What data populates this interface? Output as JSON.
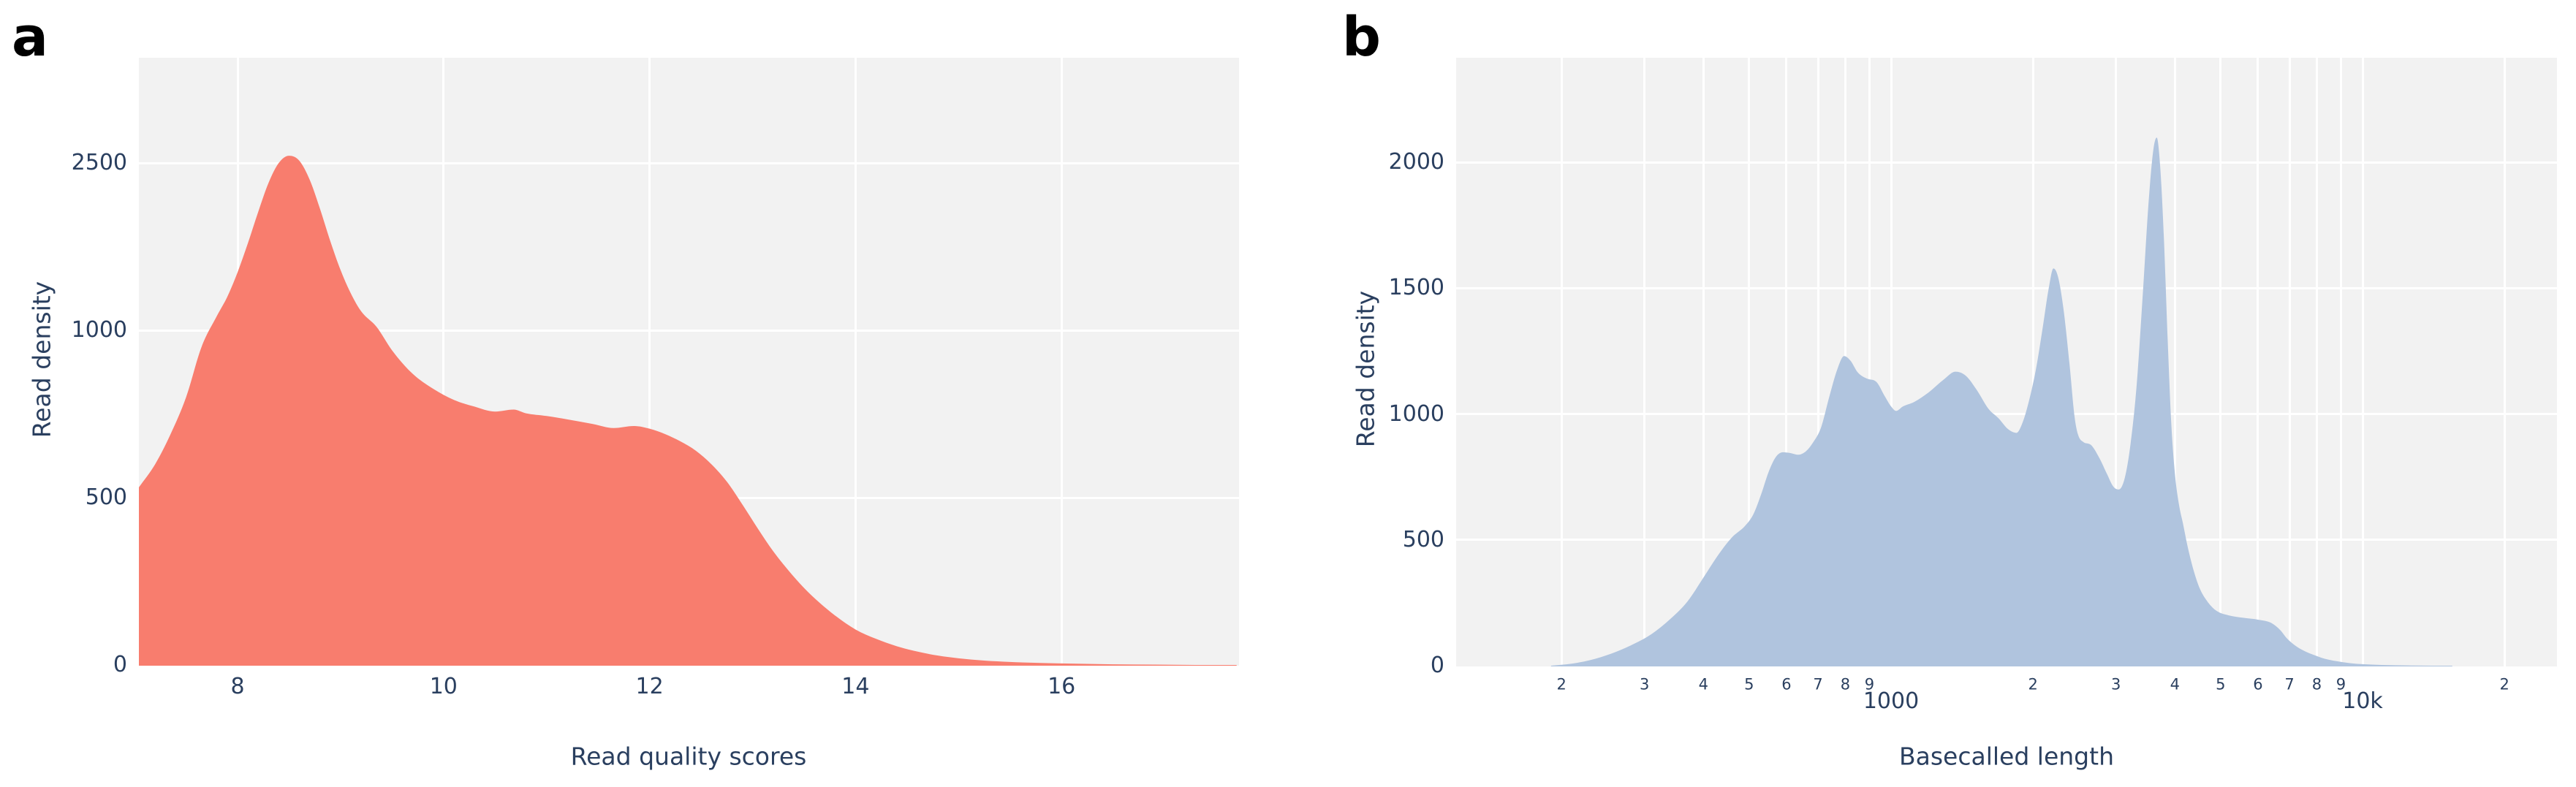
{
  "colors": {
    "panel_background": "#F2F2F2",
    "gridline": "#FFFFFF",
    "tick_text": "#2A3F5F",
    "panel_letter": "#000000",
    "fill_quality": "#F87D6E",
    "fill_length": "#B0C4DE"
  },
  "chart_data": [
    {
      "id": "a",
      "type": "area",
      "panel_label": "a",
      "xlabel": "Read quality scores",
      "ylabel": "Read density",
      "x_scale": "linear",
      "grid": true,
      "legend": "none",
      "fill_color": "#F87D6E",
      "x_range": [
        7.04,
        17.7
      ],
      "y_range_rendered_note": "y tick spacing is visually uniform in source even though values are 0/500/1000/2500",
      "x_ticks": [
        {
          "value": 8,
          "label": "8"
        },
        {
          "value": 10,
          "label": "10"
        },
        {
          "value": 12,
          "label": "12"
        },
        {
          "value": 14,
          "label": "14"
        },
        {
          "value": 16,
          "label": "16"
        }
      ],
      "y_ticks": [
        {
          "value": 0,
          "label": "0"
        },
        {
          "value": 500,
          "label": "500"
        },
        {
          "value": 1000,
          "label": "1000"
        },
        {
          "value": 2500,
          "label": "2500"
        }
      ],
      "series": {
        "name": "read-quality-density",
        "x": [
          7.04,
          7.2,
          7.35,
          7.5,
          7.65,
          7.8,
          7.9,
          8.0,
          8.1,
          8.2,
          8.3,
          8.4,
          8.5,
          8.6,
          8.7,
          8.8,
          8.9,
          9.0,
          9.1,
          9.2,
          9.35,
          9.5,
          9.7,
          9.9,
          10.1,
          10.3,
          10.5,
          10.68,
          10.8,
          11.0,
          11.2,
          11.45,
          11.65,
          11.85,
          12.0,
          12.15,
          12.3,
          12.45,
          12.6,
          12.75,
          12.9,
          13.05,
          13.2,
          13.35,
          13.5,
          13.65,
          13.8,
          14.0,
          14.2,
          14.4,
          14.6,
          14.8,
          15.0,
          15.25,
          15.5,
          15.8,
          16.1,
          16.5,
          16.9,
          17.3,
          17.7
        ],
        "y": [
          530,
          600,
          690,
          800,
          950,
          1130,
          1300,
          1520,
          1780,
          2060,
          2320,
          2500,
          2565,
          2520,
          2350,
          2090,
          1800,
          1540,
          1330,
          1170,
          1030,
          940,
          870,
          825,
          792,
          772,
          757,
          763,
          752,
          744,
          734,
          720,
          708,
          714,
          706,
          690,
          668,
          640,
          600,
          548,
          480,
          408,
          340,
          282,
          230,
          186,
          148,
          106,
          78,
          56,
          40,
          28,
          20,
          13,
          9,
          6,
          4,
          2,
          1,
          0,
          0
        ]
      }
    },
    {
      "id": "b",
      "type": "area",
      "panel_label": "b",
      "xlabel": "Basecalled length",
      "ylabel": "Read density",
      "x_scale": "log10",
      "grid": true,
      "legend": "none",
      "fill_color": "#B0C4DE",
      "x_range": [
        120,
        26000
      ],
      "y_range": [
        0,
        2200
      ],
      "x_ticks_minor": [
        {
          "value": 200,
          "label": "2"
        },
        {
          "value": 300,
          "label": "3"
        },
        {
          "value": 400,
          "label": "4"
        },
        {
          "value": 500,
          "label": "5"
        },
        {
          "value": 600,
          "label": "6"
        },
        {
          "value": 700,
          "label": "7"
        },
        {
          "value": 800,
          "label": "8"
        },
        {
          "value": 900,
          "label": "9"
        },
        {
          "value": 2000,
          "label": "2"
        },
        {
          "value": 3000,
          "label": "3"
        },
        {
          "value": 4000,
          "label": "4"
        },
        {
          "value": 5000,
          "label": "5"
        },
        {
          "value": 6000,
          "label": "6"
        },
        {
          "value": 7000,
          "label": "7"
        },
        {
          "value": 8000,
          "label": "8"
        },
        {
          "value": 9000,
          "label": "9"
        },
        {
          "value": 20000,
          "label": "2"
        }
      ],
      "x_ticks_major": [
        {
          "value": 1000,
          "label": "1000"
        },
        {
          "value": 10000,
          "label": "10k"
        }
      ],
      "y_ticks": [
        {
          "value": 0,
          "label": "0"
        },
        {
          "value": 500,
          "label": "500"
        },
        {
          "value": 1000,
          "label": "1000"
        },
        {
          "value": 1500,
          "label": "1500"
        },
        {
          "value": 2000,
          "label": "2000"
        }
      ],
      "series": {
        "name": "basecalled-length-density",
        "x": [
          190,
          210,
          230,
          255,
          280,
          310,
          340,
          370,
          400,
          430,
          460,
          490,
          510,
          530,
          550,
          570,
          590,
          610,
          635,
          660,
          685,
          710,
          740,
          770,
          795,
          820,
          850,
          890,
          930,
          970,
          1000,
          1025,
          1060,
          1120,
          1200,
          1290,
          1370,
          1440,
          1520,
          1610,
          1690,
          1770,
          1845,
          1900,
          1960,
          2030,
          2100,
          2160,
          2210,
          2260,
          2320,
          2390,
          2450,
          2490,
          2560,
          2650,
          2760,
          2870,
          2960,
          3040,
          3130,
          3220,
          3320,
          3420,
          3520,
          3600,
          3660,
          3720,
          3790,
          3860,
          3930,
          4000,
          4080,
          4160,
          4260,
          4380,
          4520,
          4700,
          4900,
          5200,
          5600,
          6000,
          6400,
          6700,
          6900,
          7200,
          7500,
          7900,
          8300,
          8800,
          9400,
          10000,
          11000,
          12500,
          14000,
          15500
        ],
        "y": [
          0,
          8,
          22,
          48,
          80,
          125,
          185,
          255,
          350,
          440,
          510,
          555,
          600,
          680,
          770,
          830,
          848,
          845,
          838,
          852,
          890,
          945,
          1070,
          1180,
          1230,
          1212,
          1165,
          1140,
          1128,
          1070,
          1030,
          1012,
          1030,
          1048,
          1085,
          1135,
          1168,
          1152,
          1095,
          1020,
          983,
          940,
          925,
          965,
          1050,
          1180,
          1350,
          1500,
          1578,
          1545,
          1420,
          1200,
          990,
          920,
          888,
          878,
          828,
          762,
          712,
          700,
          745,
          880,
          1120,
          1480,
          1850,
          2050,
          2098,
          1990,
          1700,
          1300,
          960,
          762,
          640,
          565,
          470,
          380,
          305,
          252,
          218,
          200,
          190,
          183,
          170,
          140,
          110,
          80,
          60,
          42,
          28,
          18,
          10,
          6,
          3,
          1,
          0,
          0
        ]
      }
    }
  ]
}
